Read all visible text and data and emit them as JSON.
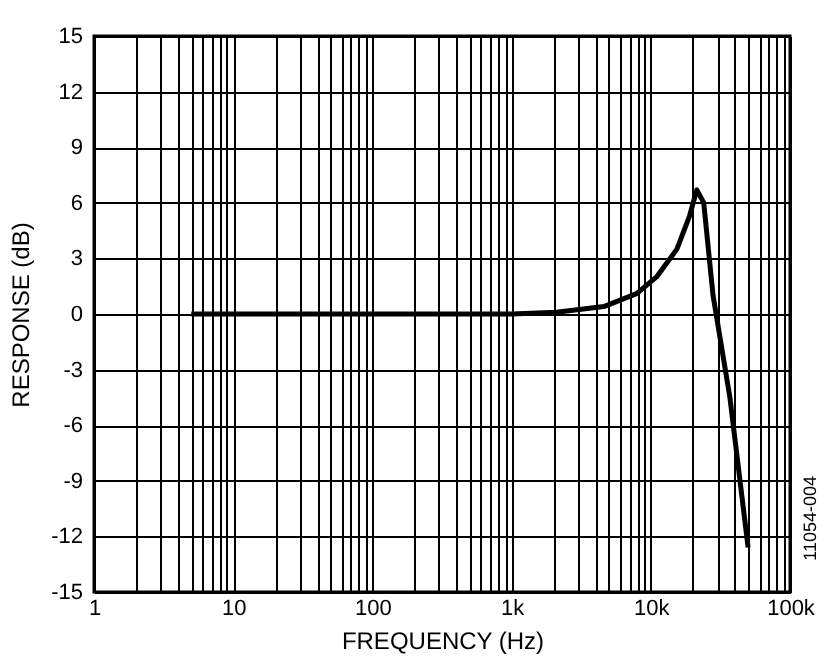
{
  "chart_data": {
    "type": "line",
    "xlabel": "FREQUENCY (Hz)",
    "ylabel": "RESPONSE (dB)",
    "log": "x",
    "grid": true,
    "line_style": "solid",
    "marker": "none",
    "x": [
      5,
      10,
      100,
      1000,
      2100,
      4600,
      7900,
      11000,
      15400,
      19000,
      21400,
      24000,
      28000,
      37000,
      50000
    ],
    "series": [
      {
        "color": "#000000",
        "values": [
          0,
          0,
          0,
          0,
          0.1,
          0.4,
          1.1,
          2,
          3.5,
          5.3,
          6.7,
          6,
          1,
          -4.5,
          -12.6
        ]
      }
    ],
    "xlim": [
      1,
      100000
    ],
    "ylim": [
      -15,
      15
    ],
    "xticks": [
      1,
      {
        "value": 2,
        "label": null
      },
      {
        "value": 3,
        "label": null
      },
      {
        "value": 4,
        "label": null
      },
      {
        "value": 5,
        "label": null
      },
      {
        "value": 6,
        "label": null
      },
      {
        "value": 7,
        "label": null
      },
      {
        "value": 8,
        "label": null
      },
      {
        "value": 9,
        "label": null
      },
      10,
      {
        "value": 20,
        "label": null
      },
      {
        "value": 30,
        "label": null
      },
      {
        "value": 40,
        "label": null
      },
      {
        "value": 50,
        "label": null
      },
      {
        "value": 60,
        "label": null
      },
      {
        "value": 70,
        "label": null
      },
      {
        "value": 80,
        "label": null
      },
      {
        "value": 90,
        "label": null
      },
      100,
      {
        "value": 200,
        "label": null
      },
      {
        "value": 300,
        "label": null
      },
      {
        "value": 400,
        "label": null
      },
      {
        "value": 500,
        "label": null
      },
      {
        "value": 600,
        "label": null
      },
      {
        "value": 700,
        "label": null
      },
      {
        "value": 800,
        "label": null
      },
      {
        "value": 900,
        "label": null
      },
      {
        "value": 1000,
        "label": "1k"
      },
      {
        "value": 2000,
        "label": null
      },
      {
        "value": 3000,
        "label": null
      },
      {
        "value": 4000,
        "label": null
      },
      {
        "value": 5000,
        "label": null
      },
      {
        "value": 6000,
        "label": null
      },
      {
        "value": 7000,
        "label": null
      },
      {
        "value": 8000,
        "label": null
      },
      {
        "value": 9000,
        "label": null
      },
      {
        "value": 10000,
        "label": "10k"
      },
      {
        "value": 20000,
        "label": null
      },
      {
        "value": 30000,
        "label": null
      },
      {
        "value": 40000,
        "label": null
      },
      {
        "value": 50000,
        "label": null
      },
      {
        "value": 60000,
        "label": null
      },
      {
        "value": 70000,
        "label": null
      },
      {
        "value": 80000,
        "label": null
      },
      {
        "value": 90000,
        "label": null
      },
      {
        "value": 100000,
        "label": "100k"
      }
    ],
    "yticks": [
      -15,
      -12,
      -9,
      -6,
      -3,
      0,
      3,
      6,
      9,
      12,
      15
    ],
    "annotations": [
      "11054-004"
    ]
  }
}
